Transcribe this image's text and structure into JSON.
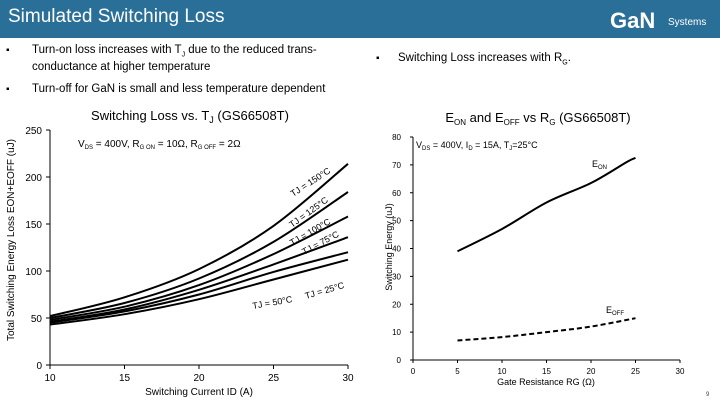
{
  "header": {
    "title": "Simulated Switching Loss",
    "logo_text": "Systems",
    "colors": {
      "bar": "#2a6f97",
      "logo_accent": "#c8d9e6"
    }
  },
  "bullets": [
    {
      "dot": "▪",
      "text_a": "Turn-on loss increases with T",
      "sub": "J",
      "text_b": " due to the reduced trans-",
      "line2": "conductance at higher temperature"
    },
    {
      "dot": "▪",
      "text_a": "Turn-off for GaN is small and less temperature dependent"
    },
    {
      "dot": "▪",
      "text_a": "Switching Loss increases with R",
      "sub": "G",
      "text_b": "."
    }
  ],
  "page_number": "9",
  "chart_data": [
    {
      "type": "line",
      "title": "Switching Loss vs. TJ (GS66508T)",
      "title_parts": {
        "a": "Switching Loss vs. T",
        "sub": "J",
        "b": " (GS66508T)"
      },
      "condition": "VDS = 400V, RGON = 10Ω, RGOFF = 2Ω",
      "condition_parts": {
        "v": "V",
        "vsub": "DS",
        "v_rest": " = 400V, R",
        "ron_sub": "G ON",
        "ron_rest": " = 10Ω, R",
        "roff_sub": "G OFF",
        "roff_rest": " = 2Ω"
      },
      "xlabel": "Switching Current ID (A)",
      "ylabel": "Total Switching Energy Loss EON+EOFF (uJ)",
      "xlim": [
        10,
        30
      ],
      "ylim": [
        0,
        250
      ],
      "xticks": [
        "10",
        "15",
        "20",
        "25",
        "30"
      ],
      "yticks": [
        "0",
        "50",
        "100",
        "150",
        "200",
        "250"
      ],
      "x": [
        10,
        15,
        20,
        25,
        30
      ],
      "series": [
        {
          "values": [
            52,
            72,
            102,
            148,
            214
          ]
        },
        {
          "values": [
            50,
            66,
            92,
            131,
            184
          ]
        },
        {
          "values": [
            48,
            62,
            85,
            118,
            158
          ]
        },
        {
          "values": [
            46,
            59,
            80,
            107,
            136
          ]
        },
        {
          "values": [
            45,
            57,
            75,
            99,
            120
          ]
        },
        {
          "values": [
            43,
            54,
            70,
            91,
            112
          ]
        }
      ],
      "annotations": [
        {
          "text": "TJ = 150°C"
        },
        {
          "text": "TJ = 125°C"
        },
        {
          "text": "TJ = 100°C"
        },
        {
          "text": "TJ = 75°C"
        },
        {
          "text": "TJ = 50°C"
        },
        {
          "text": "TJ = 25°C"
        }
      ]
    },
    {
      "type": "line",
      "title": "EON and EOFF vs RG (GS66508T)",
      "title_parts": {
        "e1": "E",
        "e1sub": "ON",
        "mid": " and E",
        "e2sub": "OFF",
        "rest": " vs R",
        "rsub": "G",
        "end": " (GS66508T)"
      },
      "condition": "VDS = 400V, ID = 15A, TJ=25°C",
      "condition_parts": {
        "v": "V",
        "vsub": "DS",
        "a": " = 400V, I",
        "isub": "D",
        "b": " = 15A, T",
        "tsub": "J",
        "c": "=25°C"
      },
      "xlabel": "Gate Resistance RG (Ω)",
      "ylabel": "Switching Energy (uJ)",
      "xlim": [
        0,
        30
      ],
      "ylim": [
        0,
        80
      ],
      "xticks": [
        "0",
        "5",
        "10",
        "15",
        "20",
        "25",
        "30"
      ],
      "yticks": [
        "0",
        "10",
        "20",
        "30",
        "40",
        "50",
        "60",
        "70",
        "80"
      ],
      "series": [
        {
          "name": "EON",
          "name_parts": {
            "a": "E",
            "sub": "ON"
          },
          "style": "solid",
          "x": [
            5,
            10,
            15,
            20,
            24,
            25
          ],
          "values": [
            39,
            47,
            56.5,
            63.5,
            71,
            72.5
          ]
        },
        {
          "name": "EOFF",
          "name_parts": {
            "a": "E",
            "sub": "OFF"
          },
          "style": "dashed",
          "x": [
            5,
            10,
            15,
            20,
            25
          ],
          "values": [
            7,
            8.2,
            10,
            12,
            15
          ]
        }
      ]
    }
  ]
}
